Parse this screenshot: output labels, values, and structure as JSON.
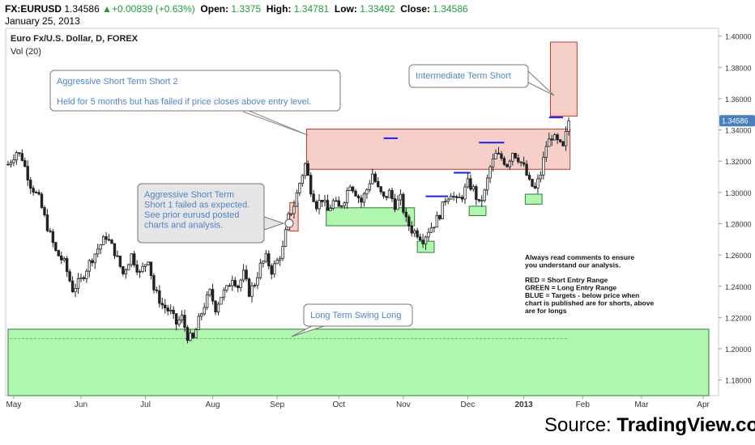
{
  "header": {
    "symbol": "FX:EURUSD",
    "last": "1.34586",
    "change": "+0.00839 (+0.63%)",
    "open_label": "Open:",
    "open": "1.3375",
    "high_label": "High:",
    "high": "1.34781",
    "low_label": "Low:",
    "low": "1.33492",
    "close_label": "Close:",
    "close": "1.34586",
    "date": "January 25, 2013"
  },
  "chart_title": "Euro Fx/U.S. Dollar, D, FOREX",
  "chart_subtitle": "Vol (20)",
  "colors": {
    "red_zone": "#f4c7c0",
    "red_border": "#c0392b",
    "green_zone": "#a6f5a6",
    "green_border": "#2e7d32",
    "blue_target": "#1a1aff",
    "annotation_text": "#4a86c8",
    "last_price_badge": "#4a7fbf"
  },
  "chart_data": {
    "type": "candlestick",
    "ylim": [
      1.17,
      1.405
    ],
    "y_ticks": [
      "1.40000",
      "1.38000",
      "1.36000",
      "1.34000",
      "1.32000",
      "1.30000",
      "1.28000",
      "1.26000",
      "1.24000",
      "1.22000",
      "1.20000",
      "1.18000"
    ],
    "y_tick_values": [
      1.4,
      1.38,
      1.36,
      1.34,
      1.32,
      1.3,
      1.28,
      1.26,
      1.24,
      1.22,
      1.2,
      1.18
    ],
    "x_ticks": [
      {
        "label": "May",
        "t": 2
      },
      {
        "label": "Jun",
        "t": 26
      },
      {
        "label": "Jul",
        "t": 49
      },
      {
        "label": "Aug",
        "t": 73
      },
      {
        "label": "Sep",
        "t": 96
      },
      {
        "label": "Oct",
        "t": 118
      },
      {
        "label": "Nov",
        "t": 141
      },
      {
        "label": "Dec",
        "t": 164
      },
      {
        "label": "2013",
        "t": 184
      },
      {
        "label": "Feb",
        "t": 205
      },
      {
        "label": "Mar",
        "t": 226
      },
      {
        "label": "Apr",
        "t": 248
      }
    ],
    "x_range": [
      0,
      250
    ],
    "last_price": "1.34586",
    "last_price_value": 1.34586,
    "price_path": [
      [
        0,
        1.318
      ],
      [
        3,
        1.326
      ],
      [
        5,
        1.322
      ],
      [
        8,
        1.305
      ],
      [
        11,
        1.296
      ],
      [
        14,
        1.278
      ],
      [
        17,
        1.262
      ],
      [
        20,
        1.255
      ],
      [
        23,
        1.238
      ],
      [
        26,
        1.244
      ],
      [
        29,
        1.255
      ],
      [
        32,
        1.264
      ],
      [
        35,
        1.272
      ],
      [
        38,
        1.262
      ],
      [
        41,
        1.248
      ],
      [
        44,
        1.26
      ],
      [
        47,
        1.248
      ],
      [
        50,
        1.258
      ],
      [
        52,
        1.238
      ],
      [
        55,
        1.228
      ],
      [
        58,
        1.223
      ],
      [
        60,
        1.216
      ],
      [
        62,
        1.22
      ],
      [
        64,
        1.208
      ],
      [
        66,
        1.206
      ],
      [
        68,
        1.218
      ],
      [
        70,
        1.228
      ],
      [
        72,
        1.236
      ],
      [
        74,
        1.226
      ],
      [
        76,
        1.234
      ],
      [
        78,
        1.238
      ],
      [
        80,
        1.246
      ],
      [
        82,
        1.24
      ],
      [
        84,
        1.248
      ],
      [
        86,
        1.236
      ],
      [
        88,
        1.242
      ],
      [
        90,
        1.253
      ],
      [
        92,
        1.258
      ],
      [
        94,
        1.25
      ],
      [
        96,
        1.256
      ],
      [
        98,
        1.264
      ],
      [
        100,
        1.284
      ],
      [
        102,
        1.292
      ],
      [
        104,
        1.306
      ],
      [
        106,
        1.318
      ],
      [
        108,
        1.302
      ],
      [
        110,
        1.292
      ],
      [
        112,
        1.296
      ],
      [
        114,
        1.288
      ],
      [
        116,
        1.294
      ],
      [
        118,
        1.29
      ],
      [
        120,
        1.296
      ],
      [
        122,
        1.306
      ],
      [
        124,
        1.3
      ],
      [
        126,
        1.294
      ],
      [
        128,
        1.302
      ],
      [
        130,
        1.312
      ],
      [
        132,
        1.302
      ],
      [
        134,
        1.296
      ],
      [
        136,
        1.3
      ],
      [
        138,
        1.292
      ],
      [
        140,
        1.296
      ],
      [
        142,
        1.282
      ],
      [
        144,
        1.276
      ],
      [
        146,
        1.274
      ],
      [
        148,
        1.27
      ],
      [
        150,
        1.276
      ],
      [
        152,
        1.28
      ],
      [
        154,
        1.286
      ],
      [
        156,
        1.296
      ],
      [
        158,
        1.3
      ],
      [
        160,
        1.294
      ],
      [
        162,
        1.298
      ],
      [
        164,
        1.306
      ],
      [
        166,
        1.302
      ],
      [
        168,
        1.292
      ],
      [
        170,
        1.3
      ],
      [
        172,
        1.316
      ],
      [
        174,
        1.324
      ],
      [
        176,
        1.322
      ],
      [
        178,
        1.318
      ],
      [
        180,
        1.326
      ],
      [
        182,
        1.322
      ],
      [
        184,
        1.316
      ],
      [
        186,
        1.306
      ],
      [
        188,
        1.302
      ],
      [
        190,
        1.312
      ],
      [
        192,
        1.33
      ],
      [
        194,
        1.336
      ],
      [
        196,
        1.332
      ],
      [
        198,
        1.328
      ],
      [
        200,
        1.346
      ]
    ],
    "zones": [
      {
        "name": "red",
        "t0": 106.5,
        "t1": 200.5,
        "y0": 1.3148,
        "y1": 1.3405
      },
      {
        "name": "red",
        "t0": 100.5,
        "t1": 103.5,
        "y0": 1.2753,
        "y1": 1.2935
      },
      {
        "name": "red",
        "t0": 193.5,
        "t1": 203,
        "y0": 1.3488,
        "y1": 1.3962
      },
      {
        "name": "green",
        "t0": 113.5,
        "t1": 145,
        "y0": 1.2787,
        "y1": 1.2902
      },
      {
        "name": "green",
        "t0": 146,
        "t1": 152,
        "y0": 1.2616,
        "y1": 1.2688
      },
      {
        "name": "green",
        "t0": 164.5,
        "t1": 170.5,
        "y0": 1.2852,
        "y1": 1.2912
      },
      {
        "name": "green",
        "t0": 184.5,
        "t1": 190.5,
        "y0": 1.2925,
        "y1": 1.2989
      },
      {
        "name": "green",
        "t0": 0,
        "t1": 250,
        "y0": 1.17,
        "y1": 1.2125
      }
    ],
    "targets": [
      {
        "t0": 134,
        "t1": 139,
        "y": 1.3347
      },
      {
        "t0": 149,
        "t1": 157,
        "y": 1.2975
      },
      {
        "t0": 159,
        "t1": 165,
        "y": 1.3126
      },
      {
        "t0": 168,
        "t1": 177,
        "y": 1.3319
      },
      {
        "t0": 193,
        "t1": 198,
        "y": 1.348
      }
    ],
    "annotations": [
      {
        "lines": [
          "Aggressive Short Term Short 2",
          "",
          "Held for 5 months but has failed if price closes above entry level."
        ]
      },
      {
        "lines": [
          "Aggressive Short Term",
          "Short 1 failed as expected.",
          "See prior eurusd posted",
          "charts and analysis."
        ]
      },
      {
        "lines": [
          "Intermediate  Term Short"
        ]
      },
      {
        "lines": [
          "Long Term Swing Long"
        ]
      }
    ],
    "notes": [
      "Always read comments to ensure",
      "you understand our analysis.",
      "",
      "RED = Short Entry Range",
      "GREEN = Long Entry Range",
      "BLUE = Targets - below price when",
      "chart is published are for shorts, above",
      "are for longs"
    ]
  },
  "source": {
    "prefix": "Source: ",
    "brand": "TradingView.com"
  }
}
